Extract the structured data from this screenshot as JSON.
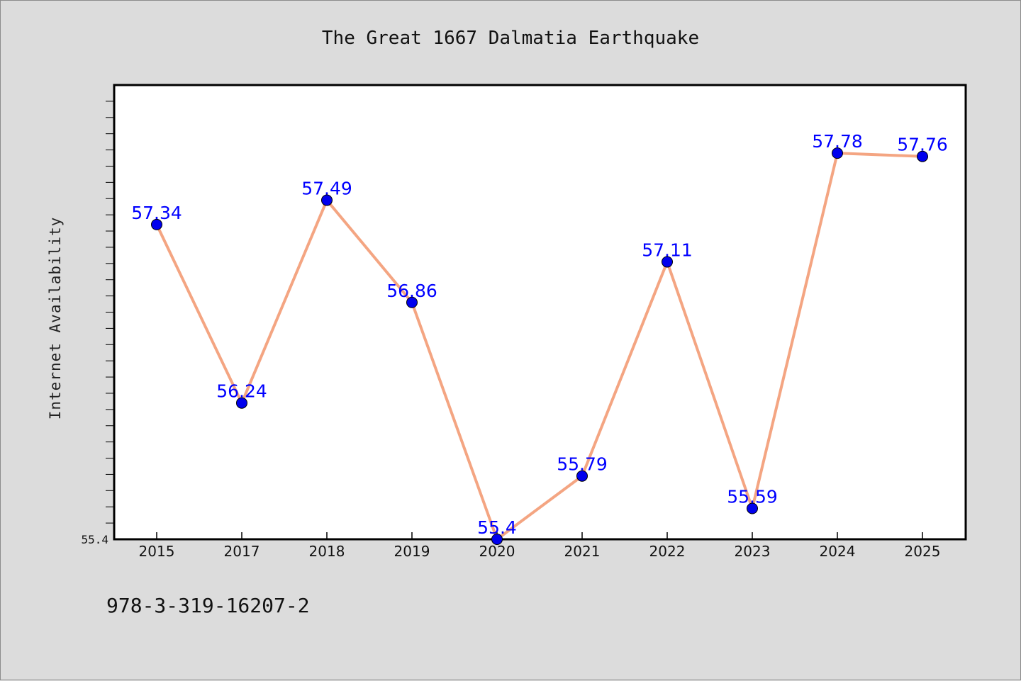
{
  "chart_data": {
    "type": "line",
    "title": "The Great 1667 Dalmatia Earthquake",
    "ylabel": "Internet Availability",
    "xlabel": "",
    "categories": [
      "2015",
      "2017",
      "2018",
      "2019",
      "2020",
      "2021",
      "2022",
      "2023",
      "2024",
      "2025"
    ],
    "series": [
      {
        "values": [
          57.34,
          56.24,
          57.49,
          56.86,
          55.4,
          55.79,
          57.11,
          55.59,
          57.78,
          57.76
        ],
        "labels": [
          "57.34",
          "56.24",
          "57.49",
          "56.86",
          "55.4",
          "55.79",
          "57.11",
          "55.59",
          "57.78",
          "57.76"
        ],
        "line_color": "#f4a582",
        "marker_color": "#0000ee"
      }
    ],
    "ylim": [
      55.4,
      58.2
    ],
    "yticks_labeled": [
      "55.4"
    ],
    "grid": false,
    "legend": "none"
  },
  "footer": {
    "isbn": "978-3-319-16207-2"
  },
  "colors": {
    "background": "#dcdcdc",
    "plot_background": "#ffffff",
    "label_color": "#0000ff"
  }
}
